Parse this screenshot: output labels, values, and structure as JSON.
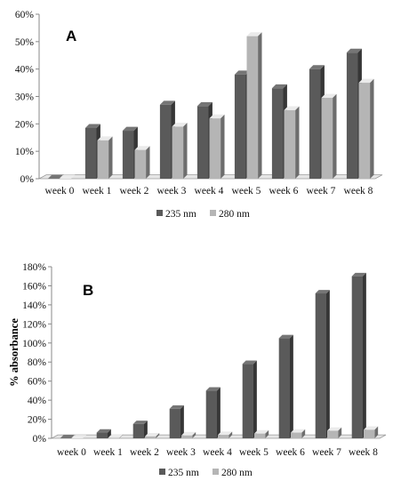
{
  "chart_data": [
    {
      "type": "bar",
      "panel_label": "A",
      "categories": [
        "week 0",
        "week 1",
        "week 2",
        "week 3",
        "week 4",
        "week 5",
        "week 6",
        "week 7",
        "week 8"
      ],
      "series": [
        {
          "name": "235 nm",
          "color": "#5a5a5a",
          "values": [
            0,
            18.5,
            17.5,
            27,
            26.5,
            38,
            33,
            40,
            46
          ]
        },
        {
          "name": "280 nm",
          "color": "#b5b5b5",
          "values": [
            0,
            14,
            10.5,
            19,
            22,
            52,
            25,
            29.5,
            35
          ]
        }
      ],
      "ylim": [
        0,
        60
      ],
      "yticks": [
        "0%",
        "10%",
        "20%",
        "30%",
        "40%",
        "50%",
        "60%"
      ],
      "ylabel": "",
      "xlabel": "",
      "grid": false,
      "legend": "bottom"
    },
    {
      "type": "bar",
      "panel_label": "B",
      "categories": [
        "week 0",
        "week 1",
        "week 2",
        "week 3",
        "week 4",
        "week 5",
        "week 6",
        "week 7",
        "week 8"
      ],
      "series": [
        {
          "name": "235 nm",
          "color": "#5a5a5a",
          "values": [
            0,
            6,
            15,
            31,
            50,
            78,
            105,
            152,
            170
          ]
        },
        {
          "name": "280 nm",
          "color": "#b5b5b5",
          "values": [
            0,
            0.5,
            2,
            3,
            3.5,
            5,
            6,
            8,
            9
          ]
        }
      ],
      "ylim": [
        0,
        180
      ],
      "yticks": [
        "0%",
        "20%",
        "40%",
        "60%",
        "80%",
        "100%",
        "120%",
        "140%",
        "160%",
        "180%"
      ],
      "ylabel": "% absorbance",
      "xlabel": "",
      "grid": false,
      "legend": "bottom"
    }
  ]
}
